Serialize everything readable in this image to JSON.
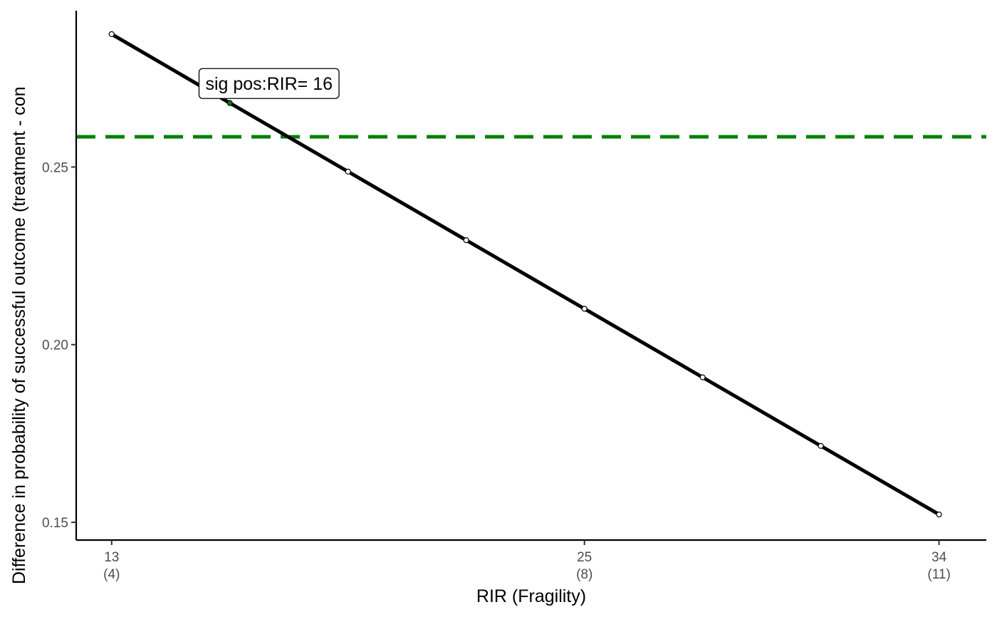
{
  "chart_data": {
    "type": "line",
    "title": "",
    "xlabel": "RIR (Fragility)",
    "ylabel": "Difference in probability of successful outcome (treatment - con",
    "xlim": [
      12.1,
      35.2
    ],
    "ylim": [
      0.145,
      0.294
    ],
    "x_ticks": [
      {
        "value": 13,
        "label": "13",
        "sublabel": "(4)"
      },
      {
        "value": 25,
        "label": "25",
        "sublabel": "(8)"
      },
      {
        "value": 34,
        "label": "34",
        "sublabel": "(11)"
      }
    ],
    "y_ticks": [
      {
        "value": 0.15,
        "label": "0.15"
      },
      {
        "value": 0.2,
        "label": "0.20"
      },
      {
        "value": 0.25,
        "label": "0.25"
      }
    ],
    "series": [
      {
        "color": "#000000",
        "x": [
          13,
          16,
          19,
          22,
          25,
          28,
          31,
          34
        ],
        "y": [
          0.2874,
          0.268,
          0.2487,
          0.2294,
          0.2101,
          0.1908,
          0.1715,
          0.1522
        ]
      }
    ],
    "highlight_point": {
      "x": 16,
      "y": 0.268,
      "color": "#008000"
    },
    "reference_line": {
      "y": 0.2585,
      "color": "#008000",
      "style": "dashed"
    },
    "annotation": {
      "text": "sig pos:RIR= 16",
      "x": 16,
      "y": 0.2735
    },
    "grid": false,
    "legend": "none"
  }
}
